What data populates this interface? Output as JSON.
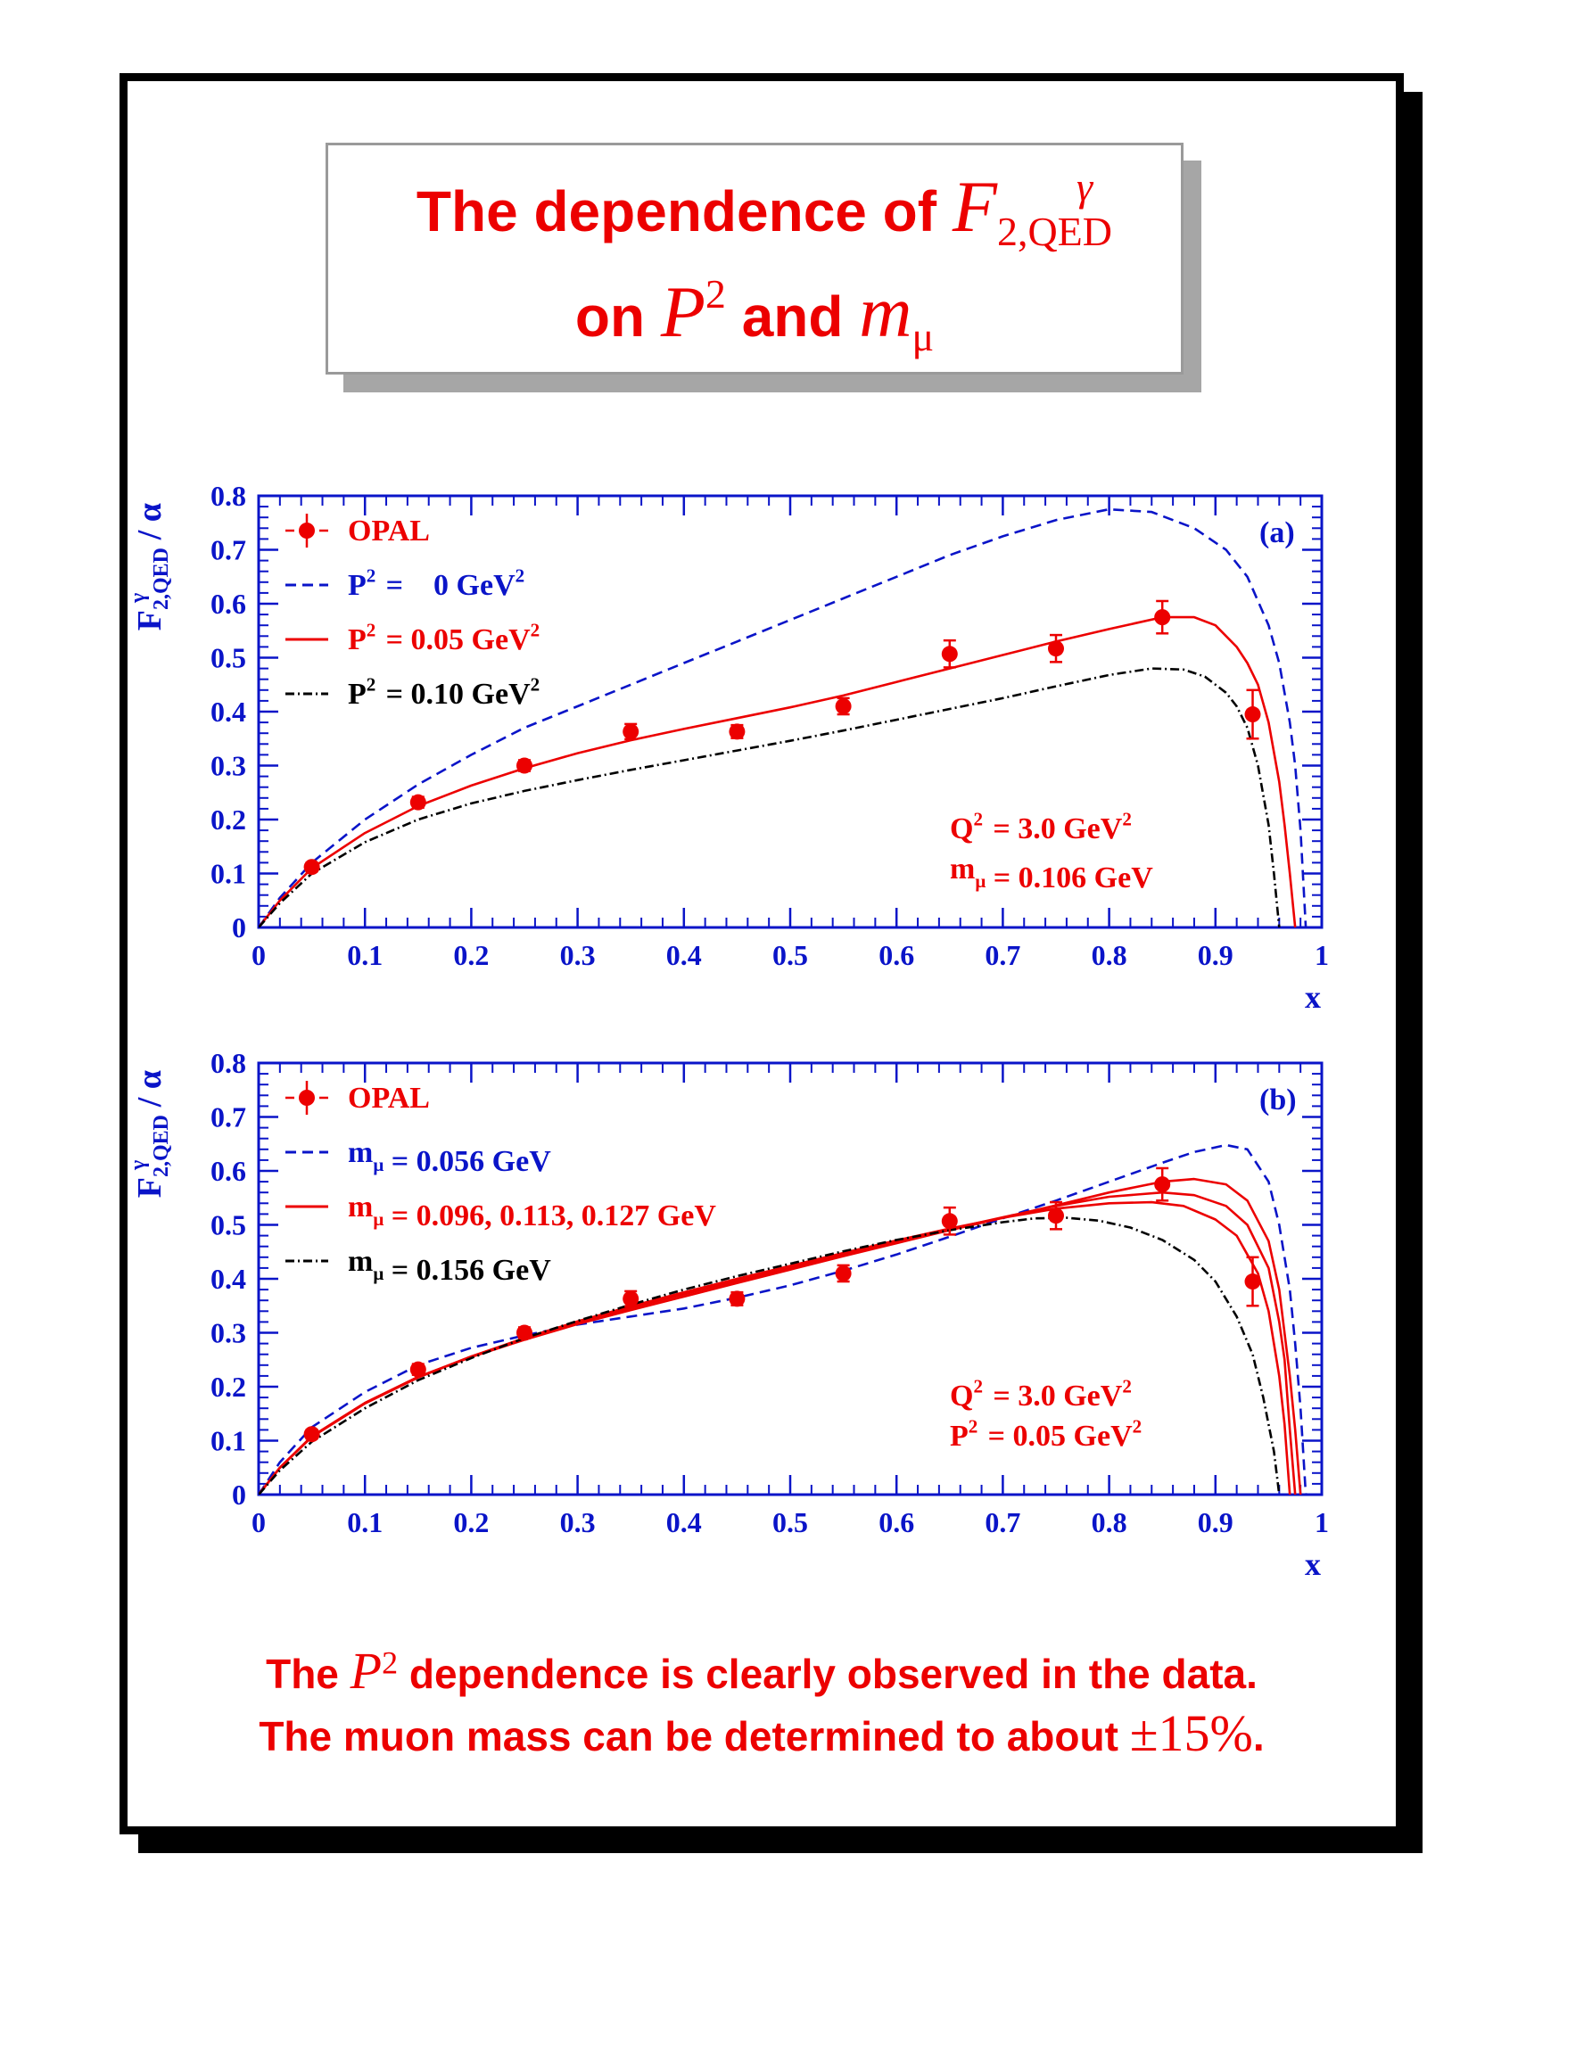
{
  "title": {
    "line1_prefix": "The dependence of ",
    "line1_symbol": "F",
    "line1_superscript": "γ",
    "line1_subscript": "2,QED",
    "line2_prefix": "on ",
    "line2_symbol1": "P",
    "line2_symbol1_superscript": "2",
    "line2_middle": " and ",
    "line2_symbol2": "m",
    "line2_symbol2_subscript": "μ"
  },
  "footer": {
    "line1_prefix": "The ",
    "line1_symbol": "P",
    "line1_superscript": "2",
    "line1_suffix": " dependence is clearly observed in the data.",
    "line2_prefix": "The muon mass can be determined to about ",
    "line2_pm": "±15%",
    "line2_suffix": "."
  },
  "colors": {
    "red": "#ec0000",
    "blue": "#0a14c8",
    "black": "#000000",
    "frame": "#0a14c8"
  },
  "chart_data": [
    {
      "type": "line",
      "panel_label": "(a)",
      "ylabel": "F^γ_2,QED / α",
      "xlabel": "x",
      "xlim": [
        0,
        1
      ],
      "ylim": [
        0,
        0.8
      ],
      "xticks": [
        "0",
        "0.1",
        "0.2",
        "0.3",
        "0.4",
        "0.5",
        "0.6",
        "0.7",
        "0.8",
        "0.9",
        "1"
      ],
      "yticks": [
        "0",
        "0.1",
        "0.2",
        "0.3",
        "0.4",
        "0.5",
        "0.6",
        "0.7",
        "0.8"
      ],
      "legend": [
        {
          "label": "OPAL",
          "style": "data",
          "color": "#ec0000"
        },
        {
          "label": "P² =    0 GeV²",
          "style": "dashed",
          "color": "#0a14c8"
        },
        {
          "label": "P² = 0.05 GeV²",
          "style": "solid",
          "color": "#ec0000"
        },
        {
          "label": "P² = 0.10 GeV²",
          "style": "dashdot",
          "color": "#000000"
        }
      ],
      "annotations": [
        "Q² = 3.0 GeV²",
        "mμ = 0.106 GeV"
      ],
      "data_points": {
        "name": "OPAL",
        "x": [
          0.05,
          0.15,
          0.25,
          0.35,
          0.45,
          0.55,
          0.65,
          0.75,
          0.85,
          0.935
        ],
        "y": [
          0.112,
          0.232,
          0.3,
          0.363,
          0.363,
          0.41,
          0.507,
          0.517,
          0.575,
          0.395
        ],
        "yerr": [
          0.008,
          0.01,
          0.01,
          0.014,
          0.012,
          0.015,
          0.025,
          0.025,
          0.03,
          0.045
        ]
      },
      "series": [
        {
          "name": "P² = 0 GeV²",
          "style": "dashed",
          "color": "#0a14c8",
          "x": [
            0,
            0.02,
            0.05,
            0.1,
            0.15,
            0.2,
            0.25,
            0.3,
            0.35,
            0.4,
            0.45,
            0.5,
            0.55,
            0.6,
            0.65,
            0.7,
            0.75,
            0.8,
            0.84,
            0.88,
            0.91,
            0.93,
            0.95,
            0.96,
            0.97,
            0.975,
            0.98,
            0.985
          ],
          "y": [
            0,
            0.055,
            0.12,
            0.2,
            0.265,
            0.32,
            0.37,
            0.41,
            0.45,
            0.49,
            0.53,
            0.57,
            0.61,
            0.65,
            0.69,
            0.725,
            0.755,
            0.775,
            0.77,
            0.74,
            0.7,
            0.65,
            0.56,
            0.49,
            0.38,
            0.3,
            0.18,
            0
          ]
        },
        {
          "name": "P² = 0.05 GeV²",
          "style": "solid",
          "color": "#ec0000",
          "x": [
            0,
            0.02,
            0.05,
            0.1,
            0.15,
            0.2,
            0.25,
            0.3,
            0.35,
            0.4,
            0.45,
            0.5,
            0.55,
            0.6,
            0.65,
            0.7,
            0.75,
            0.8,
            0.85,
            0.88,
            0.9,
            0.92,
            0.93,
            0.94,
            0.95,
            0.96,
            0.965,
            0.97,
            0.975
          ],
          "y": [
            0,
            0.05,
            0.11,
            0.175,
            0.225,
            0.263,
            0.295,
            0.323,
            0.347,
            0.368,
            0.388,
            0.408,
            0.43,
            0.455,
            0.48,
            0.505,
            0.53,
            0.553,
            0.575,
            0.575,
            0.56,
            0.52,
            0.49,
            0.45,
            0.38,
            0.27,
            0.19,
            0.1,
            0
          ]
        },
        {
          "name": "P² = 0.10 GeV²",
          "style": "dashdot",
          "color": "#000000",
          "x": [
            0,
            0.02,
            0.05,
            0.1,
            0.15,
            0.2,
            0.25,
            0.3,
            0.35,
            0.4,
            0.45,
            0.5,
            0.55,
            0.6,
            0.65,
            0.7,
            0.75,
            0.8,
            0.84,
            0.87,
            0.89,
            0.91,
            0.92,
            0.93,
            0.94,
            0.95,
            0.955,
            0.96
          ],
          "y": [
            0,
            0.045,
            0.1,
            0.158,
            0.2,
            0.23,
            0.253,
            0.273,
            0.292,
            0.31,
            0.328,
            0.346,
            0.365,
            0.385,
            0.405,
            0.425,
            0.447,
            0.468,
            0.48,
            0.478,
            0.465,
            0.435,
            0.41,
            0.37,
            0.3,
            0.19,
            0.1,
            0
          ]
        }
      ]
    },
    {
      "type": "line",
      "panel_label": "(b)",
      "ylabel": "F^γ_2,QED / α",
      "xlabel": "x",
      "xlim": [
        0,
        1
      ],
      "ylim": [
        0,
        0.8
      ],
      "xticks": [
        "0",
        "0.1",
        "0.2",
        "0.3",
        "0.4",
        "0.5",
        "0.6",
        "0.7",
        "0.8",
        "0.9",
        "1"
      ],
      "yticks": [
        "0",
        "0.1",
        "0.2",
        "0.3",
        "0.4",
        "0.5",
        "0.6",
        "0.7",
        "0.8"
      ],
      "legend": [
        {
          "label": "OPAL",
          "style": "data",
          "color": "#ec0000"
        },
        {
          "label": "mμ = 0.056 GeV",
          "style": "dashed",
          "color": "#0a14c8"
        },
        {
          "label": "mμ = 0.096, 0.113, 0.127 GeV",
          "style": "solid",
          "color": "#ec0000"
        },
        {
          "label": "mμ = 0.156 GeV",
          "style": "dashdot",
          "color": "#000000"
        }
      ],
      "annotations": [
        "Q² = 3.0 GeV²",
        "P² = 0.05 GeV²"
      ],
      "data_points": {
        "name": "OPAL",
        "x": [
          0.05,
          0.15,
          0.25,
          0.35,
          0.45,
          0.55,
          0.65,
          0.75,
          0.85,
          0.935
        ],
        "y": [
          0.112,
          0.232,
          0.3,
          0.363,
          0.363,
          0.41,
          0.507,
          0.517,
          0.575,
          0.395
        ],
        "yerr": [
          0.008,
          0.01,
          0.01,
          0.014,
          0.012,
          0.015,
          0.025,
          0.025,
          0.03,
          0.045
        ]
      },
      "series": [
        {
          "name": "mμ = 0.056 GeV",
          "style": "dashed",
          "color": "#0a14c8",
          "x": [
            0,
            0.02,
            0.05,
            0.1,
            0.15,
            0.2,
            0.25,
            0.3,
            0.35,
            0.4,
            0.45,
            0.5,
            0.55,
            0.6,
            0.65,
            0.7,
            0.75,
            0.8,
            0.85,
            0.88,
            0.91,
            0.93,
            0.95,
            0.96,
            0.97,
            0.975,
            0.98,
            0.985
          ],
          "y": [
            0,
            0.06,
            0.125,
            0.19,
            0.24,
            0.272,
            0.295,
            0.315,
            0.33,
            0.345,
            0.365,
            0.388,
            0.415,
            0.445,
            0.478,
            0.512,
            0.545,
            0.58,
            0.615,
            0.635,
            0.648,
            0.64,
            0.58,
            0.5,
            0.38,
            0.28,
            0.16,
            0
          ]
        },
        {
          "name": "mμ = 0.096 GeV",
          "style": "solid",
          "color": "#ec0000",
          "x": [
            0,
            0.02,
            0.05,
            0.1,
            0.15,
            0.2,
            0.25,
            0.3,
            0.35,
            0.4,
            0.45,
            0.5,
            0.55,
            0.6,
            0.65,
            0.7,
            0.75,
            0.8,
            0.85,
            0.88,
            0.91,
            0.93,
            0.95,
            0.96,
            0.97,
            0.975,
            0.98
          ],
          "y": [
            0,
            0.05,
            0.108,
            0.17,
            0.218,
            0.255,
            0.287,
            0.316,
            0.342,
            0.367,
            0.392,
            0.417,
            0.442,
            0.466,
            0.49,
            0.513,
            0.536,
            0.56,
            0.58,
            0.585,
            0.575,
            0.545,
            0.47,
            0.38,
            0.22,
            0.12,
            0
          ]
        },
        {
          "name": "mμ = 0.113 GeV",
          "style": "solid",
          "color": "#ec0000",
          "x": [
            0,
            0.02,
            0.05,
            0.1,
            0.15,
            0.2,
            0.25,
            0.3,
            0.35,
            0.4,
            0.45,
            0.5,
            0.55,
            0.6,
            0.65,
            0.7,
            0.75,
            0.8,
            0.85,
            0.88,
            0.91,
            0.93,
            0.95,
            0.96,
            0.965,
            0.97,
            0.975
          ],
          "y": [
            0,
            0.05,
            0.108,
            0.17,
            0.218,
            0.256,
            0.289,
            0.319,
            0.346,
            0.371,
            0.396,
            0.42,
            0.445,
            0.469,
            0.492,
            0.514,
            0.535,
            0.552,
            0.56,
            0.555,
            0.535,
            0.5,
            0.42,
            0.32,
            0.25,
            0.12,
            0
          ]
        },
        {
          "name": "mμ = 0.127 GeV",
          "style": "solid",
          "color": "#ec0000",
          "x": [
            0,
            0.02,
            0.05,
            0.1,
            0.15,
            0.2,
            0.25,
            0.3,
            0.35,
            0.4,
            0.45,
            0.5,
            0.55,
            0.6,
            0.65,
            0.7,
            0.75,
            0.8,
            0.84,
            0.87,
            0.9,
            0.92,
            0.94,
            0.95,
            0.96,
            0.965,
            0.97
          ],
          "y": [
            0,
            0.05,
            0.107,
            0.169,
            0.217,
            0.256,
            0.29,
            0.321,
            0.349,
            0.375,
            0.4,
            0.424,
            0.448,
            0.471,
            0.493,
            0.513,
            0.53,
            0.54,
            0.542,
            0.535,
            0.51,
            0.48,
            0.41,
            0.34,
            0.22,
            0.13,
            0
          ]
        },
        {
          "name": "mμ = 0.156 GeV",
          "style": "dashdot",
          "color": "#000000",
          "x": [
            0,
            0.02,
            0.05,
            0.1,
            0.15,
            0.2,
            0.25,
            0.3,
            0.35,
            0.4,
            0.45,
            0.5,
            0.55,
            0.6,
            0.65,
            0.7,
            0.73,
            0.76,
            0.79,
            0.82,
            0.85,
            0.88,
            0.9,
            0.92,
            0.935,
            0.945,
            0.955,
            0.96
          ],
          "y": [
            0,
            0.045,
            0.098,
            0.16,
            0.212,
            0.253,
            0.29,
            0.322,
            0.352,
            0.38,
            0.405,
            0.428,
            0.451,
            0.472,
            0.49,
            0.505,
            0.512,
            0.513,
            0.508,
            0.495,
            0.472,
            0.435,
            0.395,
            0.33,
            0.26,
            0.18,
            0.08,
            0
          ]
        }
      ]
    }
  ]
}
